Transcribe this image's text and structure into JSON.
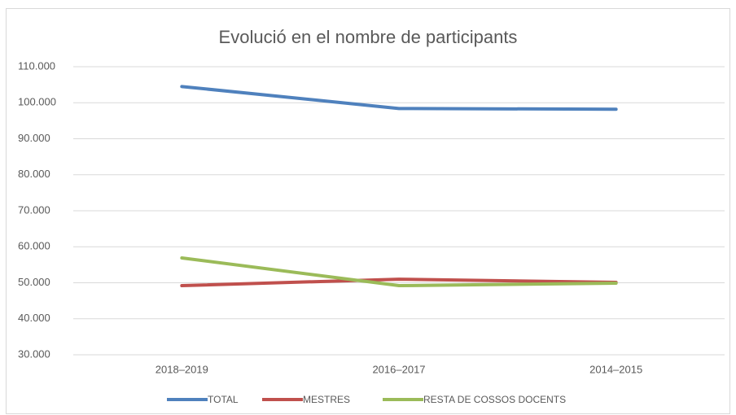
{
  "chart_data": {
    "type": "line",
    "title": "Evolució en el nombre de participants",
    "categories": [
      "2018–2019",
      "2016–2017",
      "2014–2015"
    ],
    "series": [
      {
        "name": "TOTAL",
        "color": "#4f81bd",
        "values": [
          104500,
          98400,
          98200
        ]
      },
      {
        "name": "MESTRES",
        "color": "#c0504d",
        "values": [
          49200,
          51000,
          50100
        ]
      },
      {
        "name": "RESTA DE COSSOS DOCENTS",
        "color": "#9bbb59",
        "values": [
          56900,
          49200,
          49900
        ]
      }
    ],
    "ylim": [
      30000,
      110000
    ],
    "yticks": [
      {
        "value": 30000,
        "label": "30.000"
      },
      {
        "value": 40000,
        "label": "40.000"
      },
      {
        "value": 50000,
        "label": "50.000"
      },
      {
        "value": 60000,
        "label": "60.000"
      },
      {
        "value": 70000,
        "label": "70.000"
      },
      {
        "value": 80000,
        "label": "80.000"
      },
      {
        "value": 90000,
        "label": "90.000"
      },
      {
        "value": 100000,
        "label": "100.000"
      },
      {
        "value": 110000,
        "label": "110.000"
      }
    ],
    "grid": true,
    "legend": "bottom"
  }
}
